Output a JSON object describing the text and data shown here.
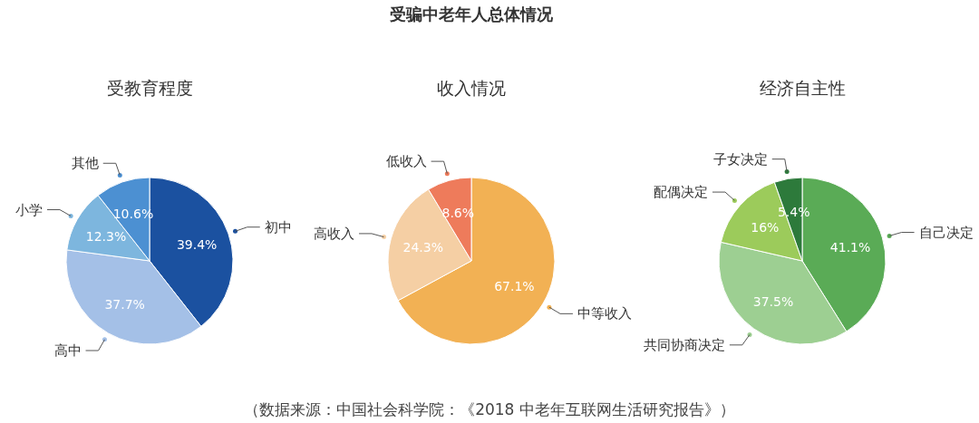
{
  "chart_data": [
    {
      "type": "pie",
      "subtitle": "受教育程度",
      "categories": [
        "初中",
        "高中",
        "小学",
        "其他"
      ],
      "values": [
        39.4,
        37.7,
        12.3,
        10.6
      ],
      "value_labels": [
        "39.4%",
        "37.7%",
        "12.3%",
        "10.6%"
      ],
      "colors": [
        "#1b51a0",
        "#a4c0e7",
        "#7db6de",
        "#4c90d2"
      ]
    },
    {
      "type": "pie",
      "title": "受骗中老年人总体情况",
      "subtitle": "收入情况",
      "categories": [
        "中等收入",
        "高收入",
        "低收入"
      ],
      "values": [
        67.1,
        24.3,
        8.6
      ],
      "value_labels": [
        "67.1%",
        "24.3%",
        "8.6%"
      ],
      "colors": [
        "#f2b154",
        "#f5cfa4",
        "#ee7b5b"
      ]
    },
    {
      "type": "pie",
      "subtitle": "经济自主性",
      "categories": [
        "自己决定",
        "共同协商决定",
        "配偶决定",
        "子女决定"
      ],
      "values": [
        41.1,
        37.5,
        16,
        5.4
      ],
      "value_labels": [
        "41.1%",
        "37.5%",
        "16%",
        "5.4%"
      ],
      "colors": [
        "#5aab56",
        "#9dcf92",
        "#9ccb5b",
        "#2d7a3b"
      ],
      "annotations": [
        "（数据来源：中国社会科学院：《2018 中老年互联网生活研究报告》）"
      ]
    }
  ]
}
